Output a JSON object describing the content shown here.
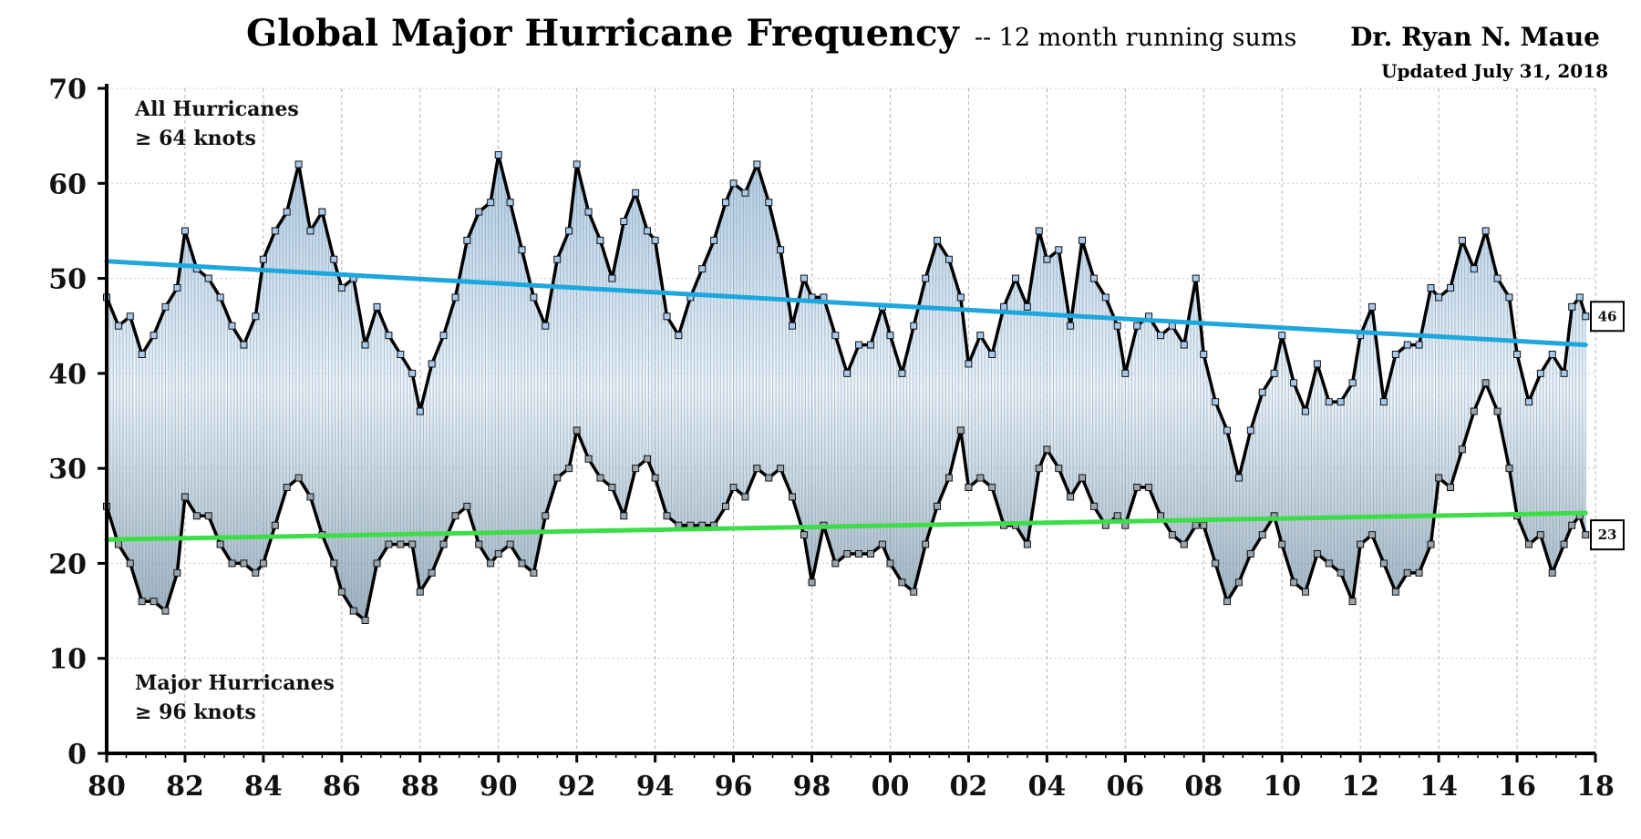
{
  "chart_data": {
    "type": "line",
    "title": "Global Major Hurricane Frequency",
    "subtitle": "-- 12 month running sums",
    "author": "Dr. Ryan N. Maue",
    "updated": "Updated July 31, 2018",
    "xlabel": "",
    "ylabel": "",
    "ylim": [
      0,
      70
    ],
    "yticks": [
      0,
      10,
      20,
      30,
      40,
      50,
      60,
      70
    ],
    "xlim": [
      1980,
      2018
    ],
    "xticks": [
      1980,
      1982,
      1984,
      1986,
      1988,
      1990,
      1992,
      1994,
      1996,
      1998,
      2000,
      2002,
      2004,
      2006,
      2008,
      2010,
      2012,
      2014,
      2016,
      2018
    ],
    "xtick_labels": [
      "80",
      "82",
      "84",
      "86",
      "88",
      "90",
      "92",
      "94",
      "96",
      "98",
      "00",
      "02",
      "04",
      "06",
      "08",
      "10",
      "12",
      "14",
      "16",
      "18"
    ],
    "grid": true,
    "annotations": {
      "all_line1": "All Hurricanes",
      "all_line2": "≥ 64 knots",
      "major_line1": "Major Hurricanes",
      "major_line2": "≥ 96 knots"
    },
    "series": [
      {
        "key": "all",
        "color": "#000000",
        "marker_color": "#a9c8ea",
        "end_label": "46",
        "points": [
          [
            1980.0,
            48
          ],
          [
            1980.3,
            45
          ],
          [
            1980.6,
            46
          ],
          [
            1980.9,
            42
          ],
          [
            1981.2,
            44
          ],
          [
            1981.5,
            47
          ],
          [
            1981.8,
            49
          ],
          [
            1982.0,
            55
          ],
          [
            1982.3,
            51
          ],
          [
            1982.6,
            50
          ],
          [
            1982.9,
            48
          ],
          [
            1983.2,
            45
          ],
          [
            1983.5,
            43
          ],
          [
            1983.8,
            46
          ],
          [
            1984.0,
            52
          ],
          [
            1984.3,
            55
          ],
          [
            1984.6,
            57
          ],
          [
            1984.9,
            62
          ],
          [
            1985.2,
            55
          ],
          [
            1985.5,
            57
          ],
          [
            1985.8,
            52
          ],
          [
            1986.0,
            49
          ],
          [
            1986.3,
            50
          ],
          [
            1986.6,
            43
          ],
          [
            1986.9,
            47
          ],
          [
            1987.2,
            44
          ],
          [
            1987.5,
            42
          ],
          [
            1987.8,
            40
          ],
          [
            1988.0,
            36
          ],
          [
            1988.3,
            41
          ],
          [
            1988.6,
            44
          ],
          [
            1988.9,
            48
          ],
          [
            1989.2,
            54
          ],
          [
            1989.5,
            57
          ],
          [
            1989.8,
            58
          ],
          [
            1990.0,
            63
          ],
          [
            1990.3,
            58
          ],
          [
            1990.6,
            53
          ],
          [
            1990.9,
            48
          ],
          [
            1991.2,
            45
          ],
          [
            1991.5,
            52
          ],
          [
            1991.8,
            55
          ],
          [
            1992.0,
            62
          ],
          [
            1992.3,
            57
          ],
          [
            1992.6,
            54
          ],
          [
            1992.9,
            50
          ],
          [
            1993.2,
            56
          ],
          [
            1993.5,
            59
          ],
          [
            1993.8,
            55
          ],
          [
            1994.0,
            54
          ],
          [
            1994.3,
            46
          ],
          [
            1994.6,
            44
          ],
          [
            1994.9,
            48
          ],
          [
            1995.2,
            51
          ],
          [
            1995.5,
            54
          ],
          [
            1995.8,
            58
          ],
          [
            1996.0,
            60
          ],
          [
            1996.3,
            59
          ],
          [
            1996.6,
            62
          ],
          [
            1996.9,
            58
          ],
          [
            1997.2,
            53
          ],
          [
            1997.5,
            45
          ],
          [
            1997.8,
            50
          ],
          [
            1998.0,
            48
          ],
          [
            1998.3,
            48
          ],
          [
            1998.6,
            44
          ],
          [
            1998.9,
            40
          ],
          [
            1999.2,
            43
          ],
          [
            1999.5,
            43
          ],
          [
            1999.8,
            47
          ],
          [
            2000.0,
            44
          ],
          [
            2000.3,
            40
          ],
          [
            2000.6,
            45
          ],
          [
            2000.9,
            50
          ],
          [
            2001.2,
            54
          ],
          [
            2001.5,
            52
          ],
          [
            2001.8,
            48
          ],
          [
            2002.0,
            41
          ],
          [
            2002.3,
            44
          ],
          [
            2002.6,
            42
          ],
          [
            2002.9,
            47
          ],
          [
            2003.2,
            50
          ],
          [
            2003.5,
            47
          ],
          [
            2003.8,
            55
          ],
          [
            2004.0,
            52
          ],
          [
            2004.3,
            53
          ],
          [
            2004.6,
            45
          ],
          [
            2004.9,
            54
          ],
          [
            2005.2,
            50
          ],
          [
            2005.5,
            48
          ],
          [
            2005.8,
            45
          ],
          [
            2006.0,
            40
          ],
          [
            2006.3,
            45
          ],
          [
            2006.6,
            46
          ],
          [
            2006.9,
            44
          ],
          [
            2007.2,
            45
          ],
          [
            2007.5,
            43
          ],
          [
            2007.8,
            50
          ],
          [
            2008.0,
            42
          ],
          [
            2008.3,
            37
          ],
          [
            2008.6,
            34
          ],
          [
            2008.9,
            29
          ],
          [
            2009.2,
            34
          ],
          [
            2009.5,
            38
          ],
          [
            2009.8,
            40
          ],
          [
            2010.0,
            44
          ],
          [
            2010.3,
            39
          ],
          [
            2010.6,
            36
          ],
          [
            2010.9,
            41
          ],
          [
            2011.2,
            37
          ],
          [
            2011.5,
            37
          ],
          [
            2011.8,
            39
          ],
          [
            2012.0,
            44
          ],
          [
            2012.3,
            47
          ],
          [
            2012.6,
            37
          ],
          [
            2012.9,
            42
          ],
          [
            2013.2,
            43
          ],
          [
            2013.5,
            43
          ],
          [
            2013.8,
            49
          ],
          [
            2014.0,
            48
          ],
          [
            2014.3,
            49
          ],
          [
            2014.6,
            54
          ],
          [
            2014.9,
            51
          ],
          [
            2015.2,
            55
          ],
          [
            2015.5,
            50
          ],
          [
            2015.8,
            48
          ],
          [
            2016.0,
            42
          ],
          [
            2016.3,
            37
          ],
          [
            2016.6,
            40
          ],
          [
            2016.9,
            42
          ],
          [
            2017.2,
            40
          ],
          [
            2017.4,
            47
          ],
          [
            2017.6,
            48
          ],
          [
            2017.75,
            46
          ]
        ]
      },
      {
        "key": "major",
        "color": "#000000",
        "marker_color": "#9aa5ad",
        "end_label": "23",
        "points": [
          [
            1980.0,
            26
          ],
          [
            1980.3,
            22
          ],
          [
            1980.6,
            20
          ],
          [
            1980.9,
            16
          ],
          [
            1981.2,
            16
          ],
          [
            1981.5,
            15
          ],
          [
            1981.8,
            19
          ],
          [
            1982.0,
            27
          ],
          [
            1982.3,
            25
          ],
          [
            1982.6,
            25
          ],
          [
            1982.9,
            22
          ],
          [
            1983.2,
            20
          ],
          [
            1983.5,
            20
          ],
          [
            1983.8,
            19
          ],
          [
            1984.0,
            20
          ],
          [
            1984.3,
            24
          ],
          [
            1984.6,
            28
          ],
          [
            1984.9,
            29
          ],
          [
            1985.2,
            27
          ],
          [
            1985.5,
            23
          ],
          [
            1985.8,
            20
          ],
          [
            1986.0,
            17
          ],
          [
            1986.3,
            15
          ],
          [
            1986.6,
            14
          ],
          [
            1986.9,
            20
          ],
          [
            1987.2,
            22
          ],
          [
            1987.5,
            22
          ],
          [
            1987.8,
            22
          ],
          [
            1988.0,
            17
          ],
          [
            1988.3,
            19
          ],
          [
            1988.6,
            22
          ],
          [
            1988.9,
            25
          ],
          [
            1989.2,
            26
          ],
          [
            1989.5,
            22
          ],
          [
            1989.8,
            20
          ],
          [
            1990.0,
            21
          ],
          [
            1990.3,
            22
          ],
          [
            1990.6,
            20
          ],
          [
            1990.9,
            19
          ],
          [
            1991.2,
            25
          ],
          [
            1991.5,
            29
          ],
          [
            1991.8,
            30
          ],
          [
            1992.0,
            34
          ],
          [
            1992.3,
            31
          ],
          [
            1992.6,
            29
          ],
          [
            1992.9,
            28
          ],
          [
            1993.2,
            25
          ],
          [
            1993.5,
            30
          ],
          [
            1993.8,
            31
          ],
          [
            1994.0,
            29
          ],
          [
            1994.3,
            25
          ],
          [
            1994.6,
            24
          ],
          [
            1994.9,
            24
          ],
          [
            1995.2,
            24
          ],
          [
            1995.5,
            24
          ],
          [
            1995.8,
            26
          ],
          [
            1996.0,
            28
          ],
          [
            1996.3,
            27
          ],
          [
            1996.6,
            30
          ],
          [
            1996.9,
            29
          ],
          [
            1997.2,
            30
          ],
          [
            1997.5,
            27
          ],
          [
            1997.8,
            23
          ],
          [
            1998.0,
            18
          ],
          [
            1998.3,
            24
          ],
          [
            1998.6,
            20
          ],
          [
            1998.9,
            21
          ],
          [
            1999.2,
            21
          ],
          [
            1999.5,
            21
          ],
          [
            1999.8,
            22
          ],
          [
            2000.0,
            20
          ],
          [
            2000.3,
            18
          ],
          [
            2000.6,
            17
          ],
          [
            2000.9,
            22
          ],
          [
            2001.2,
            26
          ],
          [
            2001.5,
            29
          ],
          [
            2001.8,
            34
          ],
          [
            2002.0,
            28
          ],
          [
            2002.3,
            29
          ],
          [
            2002.6,
            28
          ],
          [
            2002.9,
            24
          ],
          [
            2003.2,
            24
          ],
          [
            2003.5,
            22
          ],
          [
            2003.8,
            30
          ],
          [
            2004.0,
            32
          ],
          [
            2004.3,
            30
          ],
          [
            2004.6,
            27
          ],
          [
            2004.9,
            29
          ],
          [
            2005.2,
            26
          ],
          [
            2005.5,
            24
          ],
          [
            2005.8,
            25
          ],
          [
            2006.0,
            24
          ],
          [
            2006.3,
            28
          ],
          [
            2006.6,
            28
          ],
          [
            2006.9,
            25
          ],
          [
            2007.2,
            23
          ],
          [
            2007.5,
            22
          ],
          [
            2007.8,
            24
          ],
          [
            2008.0,
            24
          ],
          [
            2008.3,
            20
          ],
          [
            2008.6,
            16
          ],
          [
            2008.9,
            18
          ],
          [
            2009.2,
            21
          ],
          [
            2009.5,
            23
          ],
          [
            2009.8,
            25
          ],
          [
            2010.0,
            22
          ],
          [
            2010.3,
            18
          ],
          [
            2010.6,
            17
          ],
          [
            2010.9,
            21
          ],
          [
            2011.2,
            20
          ],
          [
            2011.5,
            19
          ],
          [
            2011.8,
            16
          ],
          [
            2012.0,
            22
          ],
          [
            2012.3,
            23
          ],
          [
            2012.6,
            20
          ],
          [
            2012.9,
            17
          ],
          [
            2013.2,
            19
          ],
          [
            2013.5,
            19
          ],
          [
            2013.8,
            22
          ],
          [
            2014.0,
            29
          ],
          [
            2014.3,
            28
          ],
          [
            2014.6,
            32
          ],
          [
            2014.9,
            36
          ],
          [
            2015.2,
            39
          ],
          [
            2015.5,
            36
          ],
          [
            2015.8,
            30
          ],
          [
            2016.0,
            25
          ],
          [
            2016.3,
            22
          ],
          [
            2016.6,
            23
          ],
          [
            2016.9,
            19
          ],
          [
            2017.2,
            22
          ],
          [
            2017.4,
            24
          ],
          [
            2017.6,
            25
          ],
          [
            2017.75,
            23
          ]
        ]
      }
    ],
    "trends": [
      {
        "key": "all-trend",
        "color": "#1ea7dc",
        "x": [
          1980,
          2017.75
        ],
        "y": [
          51.8,
          43.0
        ]
      },
      {
        "key": "major-trend",
        "color": "#3fdc4a",
        "x": [
          1980,
          2017.75
        ],
        "y": [
          22.5,
          25.3
        ]
      }
    ]
  }
}
